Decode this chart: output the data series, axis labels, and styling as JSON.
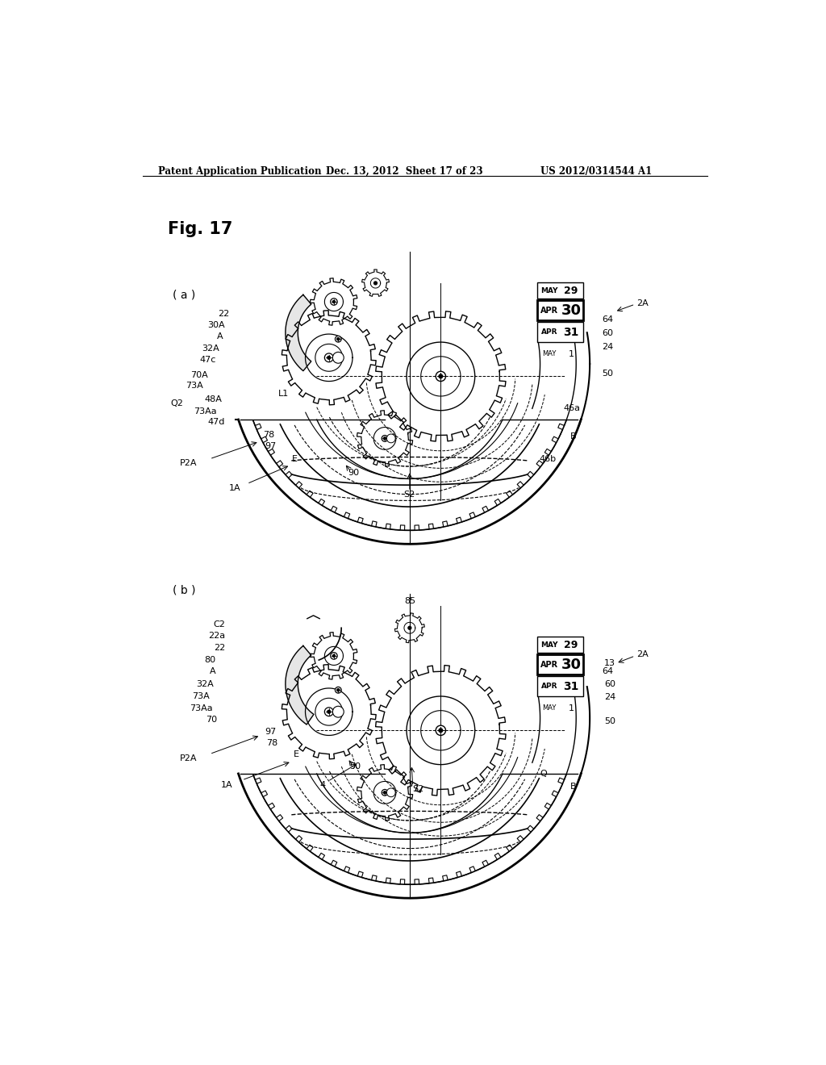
{
  "bg_color": "#ffffff",
  "header_left": "Patent Application Publication",
  "header_mid": "Dec. 13, 2012  Sheet 17 of 23",
  "header_right": "US 2012/0314544 A1",
  "fig_label": "Fig. 17",
  "panel_a_label": "( a )",
  "panel_b_label": "( b )",
  "line_color": "#000000",
  "text_color": "#000000"
}
